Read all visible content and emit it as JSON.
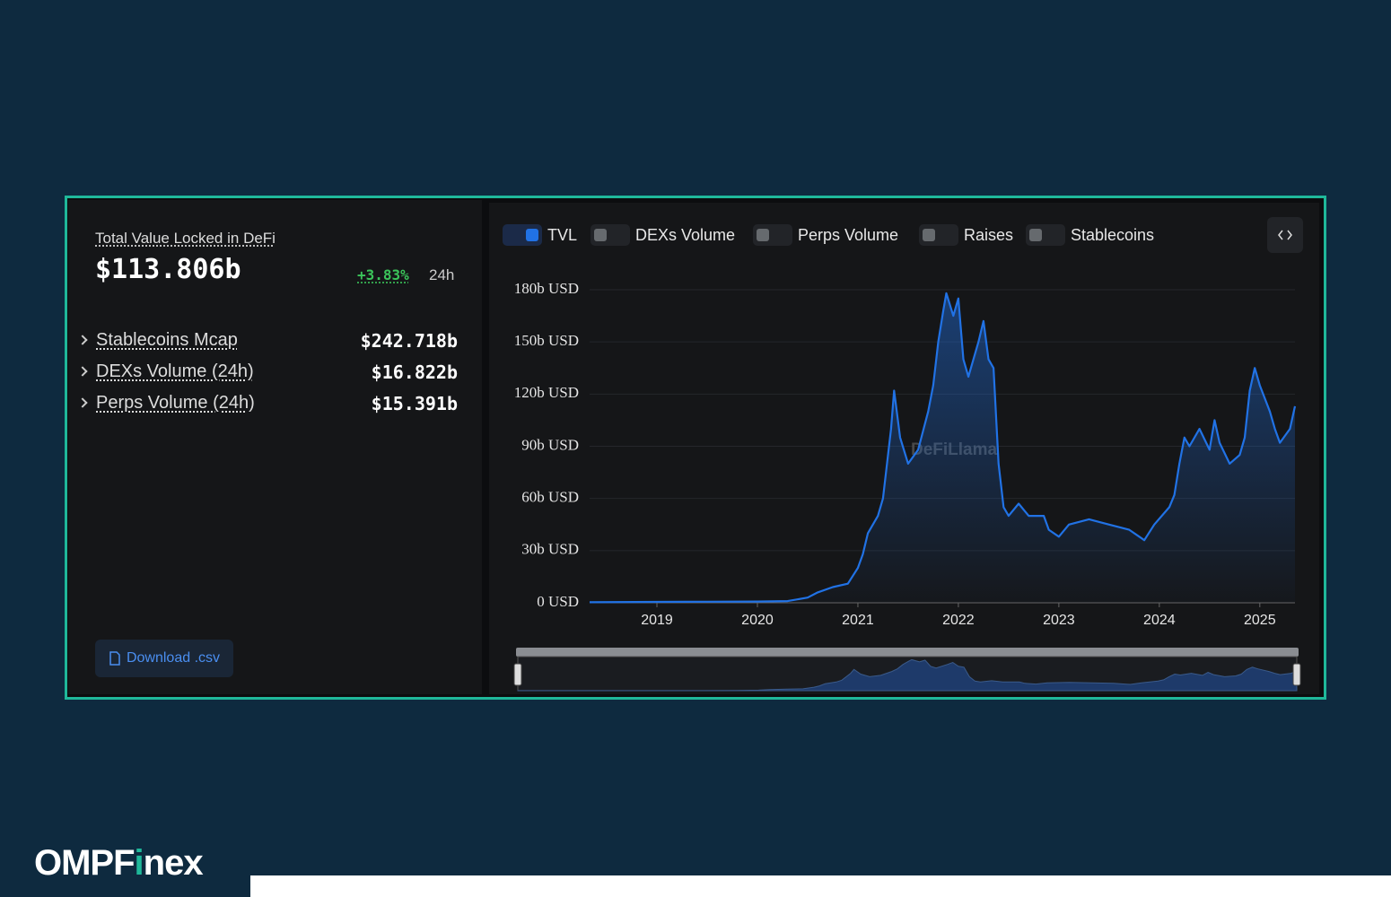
{
  "header": {
    "title": "Total Value Locked in DeFi",
    "value": "$113.806b",
    "change": "+3.83%",
    "period": "24h"
  },
  "stats": [
    {
      "label": "Stablecoins Mcap",
      "value": "$242.718b"
    },
    {
      "label": "DEXs Volume (24h)",
      "value": "$16.822b"
    },
    {
      "label": "Perps Volume (24h)",
      "value": "$15.391b"
    }
  ],
  "download": "Download .csv",
  "toggles": [
    {
      "label": "TVL",
      "enabled": true
    },
    {
      "label": "DEXs Volume",
      "enabled": false
    },
    {
      "label": "Perps Volume",
      "enabled": false
    },
    {
      "label": "Raises",
      "enabled": false
    },
    {
      "label": "Stablecoins",
      "enabled": false
    }
  ],
  "watermark": "DeFiLlama",
  "brand": [
    "OMPF",
    "i",
    "nex"
  ],
  "chart_data": {
    "type": "line",
    "x": [
      2018.33,
      2019.0,
      2019.5,
      2020.0,
      2020.3,
      2020.5,
      2020.6,
      2020.75,
      2020.9,
      2021.0,
      2021.05,
      2021.1,
      2021.2,
      2021.25,
      2021.33,
      2021.36,
      2021.42,
      2021.5,
      2021.6,
      2021.7,
      2021.75,
      2021.8,
      2021.85,
      2021.88,
      2021.95,
      2022.0,
      2022.05,
      2022.1,
      2022.2,
      2022.25,
      2022.3,
      2022.35,
      2022.4,
      2022.45,
      2022.5,
      2022.6,
      2022.7,
      2022.85,
      2022.9,
      2023.0,
      2023.1,
      2023.3,
      2023.5,
      2023.7,
      2023.8,
      2023.85,
      2023.95,
      2024.1,
      2024.15,
      2024.2,
      2024.25,
      2024.3,
      2024.4,
      2024.5,
      2024.55,
      2024.6,
      2024.7,
      2024.8,
      2024.85,
      2024.9,
      2024.95,
      2025.0,
      2025.1,
      2025.15,
      2025.2,
      2025.3,
      2025.35
    ],
    "series": [
      {
        "name": "TVL",
        "color": "#2172e5",
        "values": [
          0.3,
          0.5,
          0.6,
          0.7,
          1,
          3,
          6,
          9,
          11,
          20,
          28,
          40,
          50,
          60,
          100,
          122,
          95,
          80,
          88,
          110,
          125,
          150,
          168,
          178,
          165,
          175,
          140,
          130,
          150,
          162,
          140,
          135,
          80,
          55,
          50,
          57,
          50,
          50,
          42,
          38,
          45,
          48,
          45,
          42,
          38,
          36,
          45,
          55,
          62,
          80,
          95,
          90,
          100,
          88,
          105,
          92,
          80,
          85,
          95,
          122,
          135,
          125,
          110,
          100,
          92,
          100,
          113
        ]
      }
    ],
    "xlim": [
      2018.33,
      2025.35
    ],
    "xticks": [
      2019,
      2020,
      2021,
      2022,
      2023,
      2024,
      2025
    ],
    "ylim": [
      0,
      180
    ],
    "yticks": [
      {
        "value": 0,
        "label": "0 USD"
      },
      {
        "value": 30,
        "label": "30b USD"
      },
      {
        "value": 60,
        "label": "60b USD"
      },
      {
        "value": 90,
        "label": "90b USD"
      },
      {
        "value": 120,
        "label": "120b USD"
      },
      {
        "value": 150,
        "label": "150b USD"
      },
      {
        "value": 180,
        "label": "180b USD"
      }
    ],
    "grid": true
  }
}
